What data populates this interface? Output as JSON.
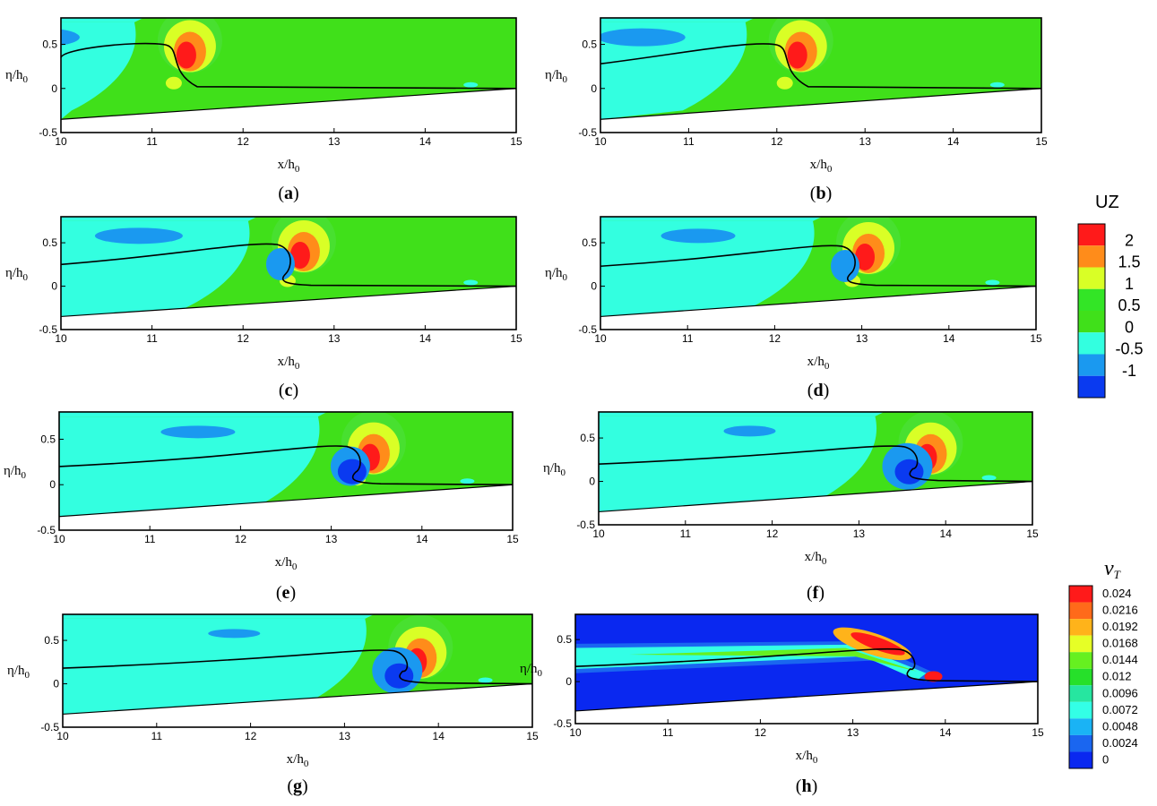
{
  "chart_data": {
    "type": "heatmap",
    "description_free": true,
    "xlim": [
      10,
      15
    ],
    "ylim": [
      -0.5,
      0.8
    ],
    "x_ticks": [
      "10",
      "11",
      "12",
      "13",
      "14",
      "15"
    ],
    "y_ticks": [
      "-0.5",
      "0",
      "0.5"
    ],
    "xlabel": "x/h",
    "xlabel_sub": "0",
    "ylabel": "η/h",
    "ylabel_sub": "0",
    "bed_slope": {
      "x": [
        10,
        15
      ],
      "y": [
        -0.35,
        0.0
      ]
    },
    "panels": [
      {
        "label": "a",
        "field": "UZ",
        "crest_x": 11.2,
        "crest_h": 0.5,
        "tail_h": 0.35,
        "break_stage": 0
      },
      {
        "label": "b",
        "field": "UZ",
        "crest_x": 12.05,
        "crest_h": 0.5,
        "tail_h": 0.28,
        "break_stage": 0
      },
      {
        "label": "c",
        "field": "UZ",
        "crest_x": 12.45,
        "crest_h": 0.48,
        "tail_h": 0.25,
        "break_stage": 1
      },
      {
        "label": "d",
        "field": "UZ",
        "crest_x": 12.85,
        "crest_h": 0.46,
        "tail_h": 0.23,
        "break_stage": 1
      },
      {
        "label": "e",
        "field": "UZ",
        "crest_x": 13.25,
        "crest_h": 0.42,
        "tail_h": 0.2,
        "break_stage": 2
      },
      {
        "label": "f",
        "field": "UZ",
        "crest_x": 13.6,
        "crest_h": 0.4,
        "tail_h": 0.2,
        "break_stage": 3
      },
      {
        "label": "g",
        "field": "UZ",
        "crest_x": 13.6,
        "crest_h": 0.38,
        "tail_h": 0.18,
        "break_stage": 3
      },
      {
        "label": "h",
        "field": "νT",
        "crest_x": 13.6,
        "crest_h": 0.38,
        "tail_h": 0.18,
        "break_stage": 3
      }
    ],
    "colorbars": [
      {
        "title": "UZ",
        "levels": [
          "2",
          "1.5",
          "1",
          "0.5",
          "0",
          "-0.5",
          "-1"
        ],
        "colors": [
          "#ff1a1a",
          "#ff8c1a",
          "#d9ff26",
          "#33e526",
          "#40e01a",
          "#33ffe0",
          "#1a99f0",
          "#0a3af0"
        ]
      },
      {
        "title": "ν",
        "title_sub": "T",
        "levels": [
          "0.024",
          "0.0216",
          "0.0192",
          "0.0168",
          "0.0144",
          "0.012",
          "0.0096",
          "0.0072",
          "0.0048",
          "0.0024",
          "0"
        ],
        "colors": [
          "#ff1a1a",
          "#ff6a1a",
          "#ffb31a",
          "#e6ff26",
          "#66f020",
          "#26e02a",
          "#26e6a0",
          "#33ffe6",
          "#1ab3f5",
          "#1a66f0",
          "#0a28f0"
        ]
      }
    ]
  }
}
